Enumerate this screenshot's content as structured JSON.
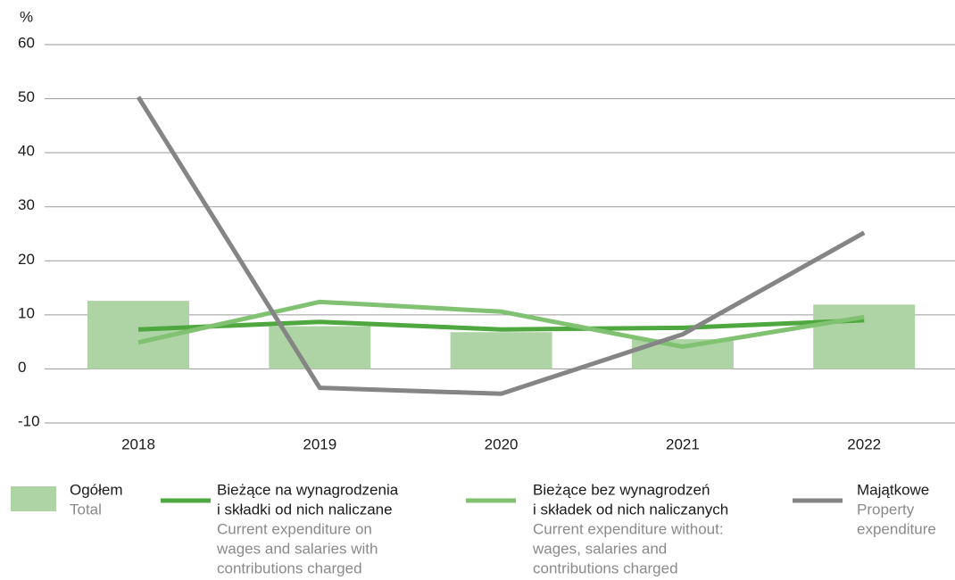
{
  "chart_data": {
    "type": "combo",
    "y_unit": "%",
    "categories": [
      "2018",
      "2019",
      "2020",
      "2021",
      "2022"
    ],
    "ylim": [
      -10,
      60
    ],
    "yticks": [
      -10,
      0,
      10,
      20,
      30,
      40,
      50,
      60
    ],
    "grid": true,
    "series": [
      {
        "type": "bar",
        "name": [
          "Ogółem"
        ],
        "name_en": [
          "Total"
        ],
        "color": "#aed4a6",
        "values": [
          12.6,
          7.9,
          6.8,
          5.5,
          11.9
        ]
      },
      {
        "type": "line",
        "name": [
          "Bieżące na wynagrodzenia",
          "i składki od nich naliczane"
        ],
        "name_en": [
          "Current expenditure on",
          "wages and salaries with",
          "contributions charged"
        ],
        "color": "#4ea83f",
        "values": [
          7.3,
          8.7,
          7.3,
          7.6,
          9.0
        ]
      },
      {
        "type": "line",
        "name": [
          "Bieżące bez wynagrodzeń",
          "i składek od nich naliczanych"
        ],
        "name_en": [
          "Current expenditure without:",
          "wages, salaries and",
          "contributions charged"
        ],
        "color": "#80c272",
        "values": [
          4.9,
          12.4,
          10.6,
          4.1,
          9.6
        ]
      },
      {
        "type": "line",
        "name": [
          "Majątkowe"
        ],
        "name_en": [
          "Property",
          "expenditure"
        ],
        "color": "#858585",
        "values": [
          50.3,
          -3.5,
          -4.6,
          6.4,
          25.2
        ]
      }
    ]
  }
}
